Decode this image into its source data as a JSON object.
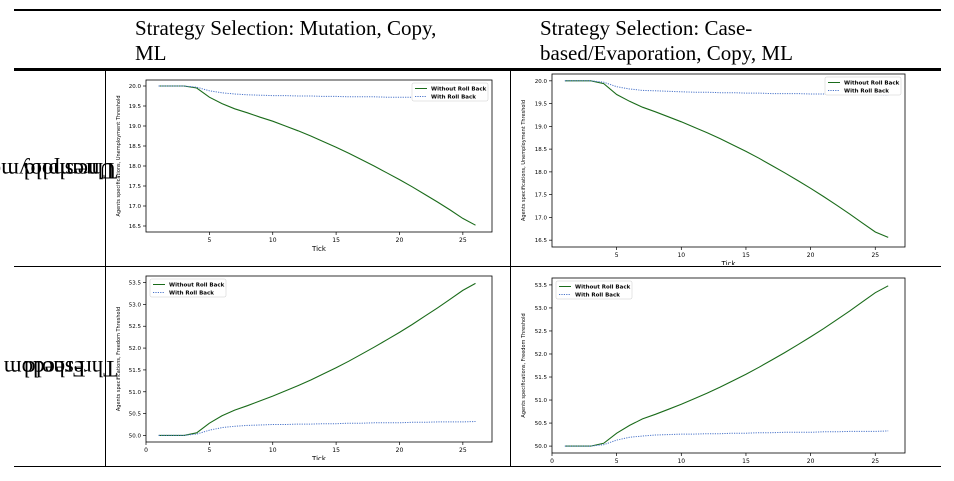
{
  "table": {
    "col_headers": [
      [
        "Strategy Selection: Mutation, Copy,",
        "ML"
      ],
      [
        "Strategy Selection: Case-",
        "based/Evaporation, Copy, ML"
      ]
    ],
    "row_headers": [
      [
        "Unemployment",
        "Threshold"
      ],
      [
        "Freedom",
        "Threshold"
      ]
    ]
  },
  "chart_data": [
    {
      "type": "line",
      "xlabel": "Tick",
      "ylabel": "Agents specifications, Unemployment Threshold",
      "xlim": [
        0,
        27.3
      ],
      "ylim": [
        16.35,
        20.15
      ],
      "xticks": [
        5,
        10,
        15,
        20,
        25
      ],
      "yticks": [
        16.5,
        17.0,
        17.5,
        18.0,
        18.5,
        19.0,
        19.5,
        20.0
      ],
      "legend": "top-right",
      "series": [
        {
          "name": "Without Roll Back",
          "color": "#1a6b1a",
          "style": "solid",
          "x": [
            1,
            2,
            3,
            4,
            5,
            6,
            7,
            8,
            9,
            10,
            11,
            12,
            13,
            14,
            15,
            16,
            17,
            18,
            19,
            20,
            21,
            22,
            23,
            24,
            25,
            26
          ],
          "y": [
            20.0,
            20.0,
            20.0,
            19.95,
            19.72,
            19.56,
            19.43,
            19.33,
            19.22,
            19.12,
            19.0,
            18.88,
            18.75,
            18.61,
            18.47,
            18.32,
            18.16,
            18.0,
            17.83,
            17.66,
            17.48,
            17.29,
            17.1,
            16.9,
            16.69,
            16.52
          ]
        },
        {
          "name": "With Roll Back",
          "color": "#4a74c9",
          "style": "dotted",
          "x": [
            1,
            2,
            3,
            4,
            5,
            6,
            7,
            8,
            9,
            10,
            11,
            12,
            13,
            14,
            15,
            16,
            17,
            18,
            19,
            20,
            21,
            22,
            23,
            24,
            25,
            26
          ],
          "y": [
            20.0,
            20.0,
            20.0,
            19.97,
            19.88,
            19.83,
            19.8,
            19.78,
            19.77,
            19.76,
            19.76,
            19.75,
            19.75,
            19.74,
            19.74,
            19.73,
            19.73,
            19.73,
            19.72,
            19.72,
            19.72,
            19.71,
            19.71,
            19.71,
            19.7,
            19.7
          ]
        }
      ]
    },
    {
      "type": "line",
      "xlabel": "Tick",
      "ylabel": "Agents specifications, Unemployment Threshold",
      "xlim": [
        0,
        27.3
      ],
      "ylim": [
        16.35,
        20.15
      ],
      "xticks": [
        5,
        10,
        15,
        20,
        25
      ],
      "yticks": [
        16.5,
        17.0,
        17.5,
        18.0,
        18.5,
        19.0,
        19.5,
        20.0
      ],
      "legend": "top-right",
      "series": [
        {
          "name": "Without Roll Back",
          "color": "#1a6b1a",
          "style": "solid",
          "x": [
            1,
            2,
            3,
            4,
            5,
            6,
            7,
            8,
            9,
            10,
            11,
            12,
            13,
            14,
            15,
            16,
            17,
            18,
            19,
            20,
            21,
            22,
            23,
            24,
            25,
            26
          ],
          "y": [
            20.0,
            20.0,
            20.0,
            19.94,
            19.7,
            19.55,
            19.42,
            19.32,
            19.21,
            19.1,
            18.98,
            18.86,
            18.73,
            18.59,
            18.45,
            18.3,
            18.14,
            17.98,
            17.81,
            17.64,
            17.46,
            17.27,
            17.08,
            16.88,
            16.68,
            16.56
          ]
        },
        {
          "name": "With Roll Back",
          "color": "#4a74c9",
          "style": "dotted",
          "x": [
            1,
            2,
            3,
            4,
            5,
            6,
            7,
            8,
            9,
            10,
            11,
            12,
            13,
            14,
            15,
            16,
            17,
            18,
            19,
            20,
            21,
            22,
            23,
            24,
            25,
            26
          ],
          "y": [
            20.0,
            20.0,
            20.0,
            19.97,
            19.87,
            19.82,
            19.79,
            19.78,
            19.77,
            19.76,
            19.75,
            19.75,
            19.74,
            19.74,
            19.73,
            19.73,
            19.72,
            19.72,
            19.72,
            19.71,
            19.71,
            19.71,
            19.7,
            19.7,
            19.7,
            19.69
          ]
        }
      ]
    },
    {
      "type": "line",
      "xlabel": "Tick",
      "ylabel": "Agents specifications, Freedom Threshold",
      "xlim": [
        0,
        27.3
      ],
      "ylim": [
        49.85,
        53.65
      ],
      "xticks": [
        0,
        5,
        10,
        15,
        20,
        25
      ],
      "yticks": [
        50.0,
        50.5,
        51.0,
        51.5,
        52.0,
        52.5,
        53.0,
        53.5
      ],
      "legend": "top-left",
      "series": [
        {
          "name": "Without Roll Back",
          "color": "#1a6b1a",
          "style": "solid",
          "x": [
            1,
            2,
            3,
            4,
            5,
            6,
            7,
            8,
            9,
            10,
            11,
            12,
            13,
            14,
            15,
            16,
            17,
            18,
            19,
            20,
            21,
            22,
            23,
            24,
            25,
            26
          ],
          "y": [
            50.0,
            50.0,
            50.0,
            50.06,
            50.28,
            50.45,
            50.58,
            50.68,
            50.79,
            50.9,
            51.02,
            51.14,
            51.27,
            51.41,
            51.55,
            51.7,
            51.86,
            52.02,
            52.19,
            52.36,
            52.54,
            52.73,
            52.92,
            53.12,
            53.32,
            53.48
          ]
        },
        {
          "name": "With Roll Back",
          "color": "#4a74c9",
          "style": "dotted",
          "x": [
            1,
            2,
            3,
            4,
            5,
            6,
            7,
            8,
            9,
            10,
            11,
            12,
            13,
            14,
            15,
            16,
            17,
            18,
            19,
            20,
            21,
            22,
            23,
            24,
            25,
            26
          ],
          "y": [
            50.0,
            50.0,
            50.0,
            50.03,
            50.12,
            50.18,
            50.21,
            50.23,
            50.24,
            50.25,
            50.25,
            50.26,
            50.26,
            50.27,
            50.27,
            50.28,
            50.28,
            50.29,
            50.29,
            50.29,
            50.3,
            50.3,
            50.31,
            50.31,
            50.31,
            50.32
          ]
        }
      ]
    },
    {
      "type": "line",
      "xlabel": "Tick",
      "ylabel": "Agents specifications, Freedom Threshold",
      "xlim": [
        0,
        27.3
      ],
      "ylim": [
        49.85,
        53.65
      ],
      "xticks": [
        0,
        5,
        10,
        15,
        20,
        25
      ],
      "yticks": [
        50.0,
        50.5,
        51.0,
        51.5,
        52.0,
        52.5,
        53.0,
        53.5
      ],
      "legend": "top-left",
      "series": [
        {
          "name": "Without Roll Back",
          "color": "#1a6b1a",
          "style": "solid",
          "x": [
            1,
            2,
            3,
            4,
            5,
            6,
            7,
            8,
            9,
            10,
            11,
            12,
            13,
            14,
            15,
            16,
            17,
            18,
            19,
            20,
            21,
            22,
            23,
            24,
            25,
            26
          ],
          "y": [
            50.0,
            50.0,
            50.0,
            50.06,
            50.28,
            50.45,
            50.59,
            50.69,
            50.8,
            50.91,
            51.03,
            51.15,
            51.28,
            51.42,
            51.56,
            51.71,
            51.87,
            52.03,
            52.2,
            52.37,
            52.55,
            52.74,
            52.93,
            53.13,
            53.33,
            53.48
          ]
        },
        {
          "name": "With Roll Back",
          "color": "#4a74c9",
          "style": "dotted",
          "x": [
            1,
            2,
            3,
            4,
            5,
            6,
            7,
            8,
            9,
            10,
            11,
            12,
            13,
            14,
            15,
            16,
            17,
            18,
            19,
            20,
            21,
            22,
            23,
            24,
            25,
            26
          ],
          "y": [
            50.0,
            50.0,
            50.0,
            50.03,
            50.13,
            50.19,
            50.22,
            50.24,
            50.25,
            50.26,
            50.26,
            50.27,
            50.27,
            50.28,
            50.28,
            50.29,
            50.29,
            50.3,
            50.3,
            50.3,
            50.31,
            50.31,
            50.32,
            50.32,
            50.32,
            50.33
          ]
        }
      ]
    }
  ]
}
